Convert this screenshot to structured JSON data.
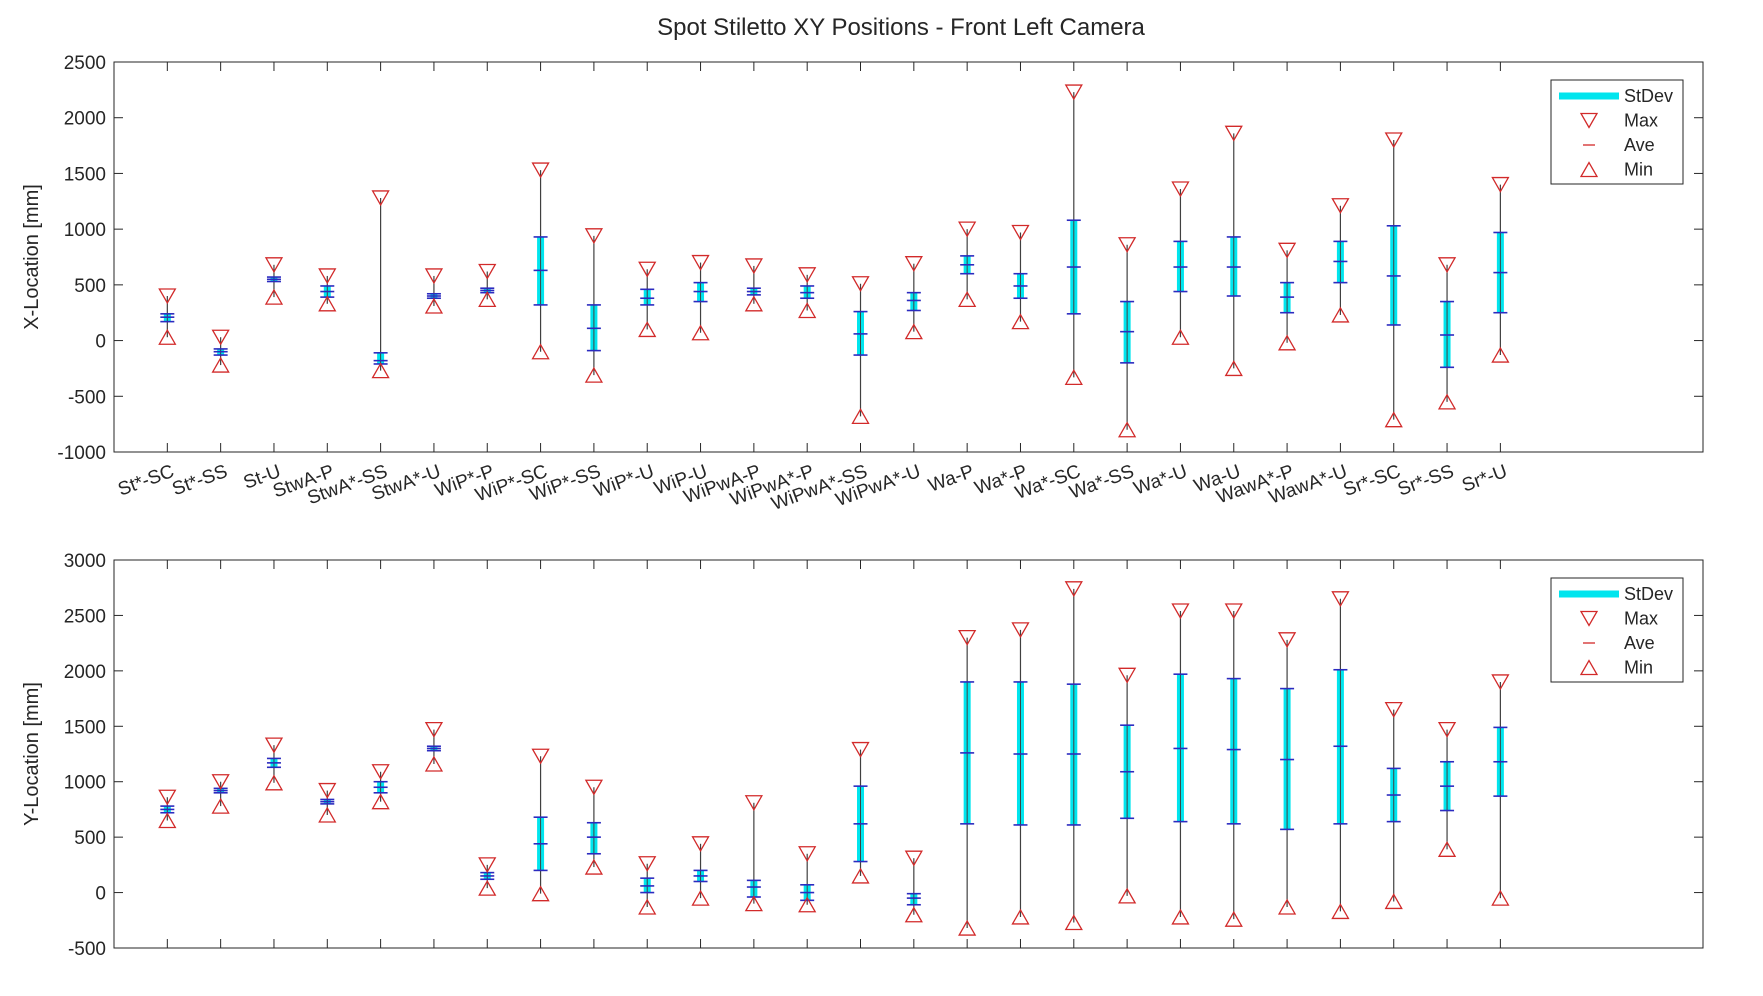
{
  "figure": {
    "title": "Spot Stiletto XY Positions - Front Left Camera"
  },
  "legend": {
    "stdev": "StDev",
    "max": "Max",
    "ave": "Ave",
    "min": "Min"
  },
  "colors": {
    "stdev": "#00e5ee",
    "marker": "#d22a2a",
    "ave": "#2b2bbf",
    "range": "#404040",
    "axis": "#262626"
  },
  "chart_data": [
    {
      "type": "errorbar",
      "ylabel": "X-Location [mm]",
      "ylim": [
        -1000,
        2500
      ],
      "yticks": [
        -1000,
        -500,
        0,
        500,
        1000,
        1500,
        2000,
        2500
      ],
      "xlim": [
        0,
        29.8
      ],
      "legend_position": "top-right",
      "categories": [
        "St*-SC",
        "St*-SS",
        "St-U",
        "StwA-P",
        "StwA*-SS",
        "StwA*-U",
        "WiP*-P",
        "WiP*-SC",
        "WiP*-SS",
        "WiP*-U",
        "WiP-U",
        "WiPwA-P",
        "WiPwA*-P",
        "WiPwA*-SS",
        "WiPwA*-U",
        "Wa-P",
        "Wa*-P",
        "Wa*-SC",
        "Wa*-SS",
        "Wa*-U",
        "Wa-U",
        "WawA*-P",
        "WawA*-U",
        "Sr*-SC",
        "Sr*-SS",
        "Sr*-U"
      ],
      "max": [
        400,
        30,
        680,
        580,
        1280,
        580,
        620,
        1530,
        940,
        640,
        700,
        670,
        590,
        510,
        690,
        1000,
        970,
        2230,
        860,
        1360,
        1860,
        810,
        1210,
        1800,
        680,
        1400
      ],
      "ave": [
        210,
        -100,
        550,
        440,
        -180,
        400,
        450,
        630,
        110,
        380,
        440,
        440,
        430,
        60,
        360,
        680,
        490,
        660,
        80,
        660,
        660,
        390,
        710,
        580,
        50,
        610
      ],
      "std_hi": [
        240,
        -75,
        570,
        490,
        -110,
        420,
        470,
        930,
        320,
        460,
        520,
        470,
        490,
        260,
        430,
        760,
        600,
        1080,
        350,
        890,
        930,
        520,
        890,
        1030,
        350,
        970
      ],
      "std_lo": [
        170,
        -130,
        530,
        390,
        -210,
        380,
        430,
        320,
        -90,
        320,
        350,
        410,
        380,
        -130,
        270,
        600,
        380,
        240,
        -200,
        440,
        400,
        250,
        520,
        140,
        -240,
        250
      ],
      "min": [
        30,
        -220,
        390,
        330,
        -270,
        310,
        370,
        -100,
        -310,
        100,
        70,
        330,
        270,
        -680,
        80,
        370,
        170,
        -330,
        -800,
        30,
        -250,
        -20,
        230,
        -710,
        -550,
        -130
      ]
    },
    {
      "type": "errorbar",
      "ylabel": "Y-Location [mm]",
      "ylim": [
        -500,
        3000
      ],
      "yticks": [
        -500,
        0,
        500,
        1000,
        1500,
        2000,
        2500,
        3000
      ],
      "xlim": [
        0,
        29.8
      ],
      "legend_position": "top-right",
      "categories": [
        "St*-SC",
        "St*-SS",
        "St-U",
        "StwA-P",
        "StwA*-SS",
        "StwA*-U",
        "WiP*-P",
        "WiP*-SC",
        "WiP*-SS",
        "WiP*-U",
        "WiP-U",
        "WiPwA-P",
        "WiPwA*-P",
        "WiPwA*-SS",
        "WiPwA*-U",
        "Wa-P",
        "Wa*-P",
        "Wa*-SC",
        "Wa*-SS",
        "Wa*-U",
        "Wa-U",
        "WawA*-P",
        "WawA*-U",
        "Sr*-SC",
        "Sr*-SS",
        "Sr*-U"
      ],
      "max": [
        860,
        1000,
        1330,
        920,
        1090,
        1470,
        250,
        1230,
        950,
        260,
        440,
        810,
        350,
        1290,
        310,
        2300,
        2370,
        2740,
        1960,
        2540,
        2540,
        2280,
        2650,
        1650,
        1470,
        1900
      ],
      "ave": [
        750,
        920,
        1170,
        820,
        950,
        1300,
        150,
        440,
        500,
        60,
        150,
        50,
        0,
        620,
        -50,
        1260,
        1250,
        1250,
        1090,
        1300,
        1290,
        1200,
        1320,
        880,
        960,
        1180
      ],
      "std_hi": [
        780,
        940,
        1210,
        840,
        1000,
        1320,
        180,
        680,
        630,
        130,
        200,
        110,
        70,
        960,
        -10,
        1900,
        1900,
        1880,
        1510,
        1970,
        1930,
        1840,
        2010,
        1120,
        1180,
        1490
      ],
      "std_lo": [
        720,
        900,
        1130,
        800,
        900,
        1280,
        120,
        200,
        350,
        0,
        100,
        -40,
        -70,
        280,
        -110,
        620,
        610,
        610,
        670,
        640,
        620,
        570,
        620,
        640,
        740,
        870
      ],
      "min": [
        650,
        780,
        990,
        700,
        820,
        1160,
        40,
        -10,
        230,
        -130,
        -50,
        -100,
        -110,
        150,
        -200,
        -320,
        -220,
        -270,
        -30,
        -220,
        -240,
        -130,
        -170,
        -80,
        390,
        -50
      ]
    }
  ]
}
